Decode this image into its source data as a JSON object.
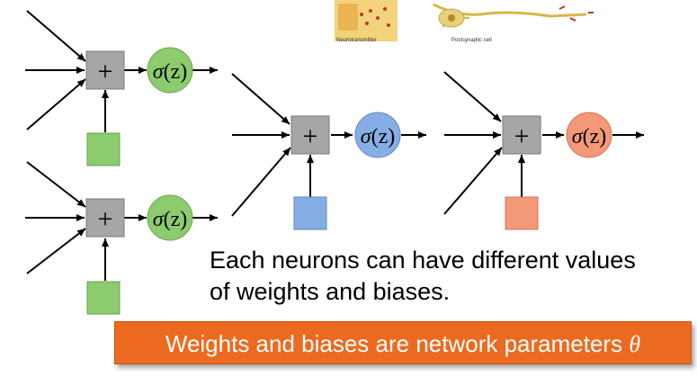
{
  "caption": {
    "line1": "Each neurons can have different values",
    "line2": "of weights and biases."
  },
  "banner": {
    "text": "Weights and biases are network parameters ",
    "symbol": "θ"
  },
  "image_labels": {
    "left": "Neurotransmitter",
    "right": "Postsynaptic cell"
  },
  "nodes": {
    "sum_symbol": "+",
    "activation_symbol": "σ",
    "activation_arg": "(z)"
  },
  "colors": {
    "green": "#8ccb6e",
    "blue": "#87aee4",
    "orange": "#f4987a",
    "sum_box": "#a6a6a6",
    "banner": "#ec6a1f"
  }
}
